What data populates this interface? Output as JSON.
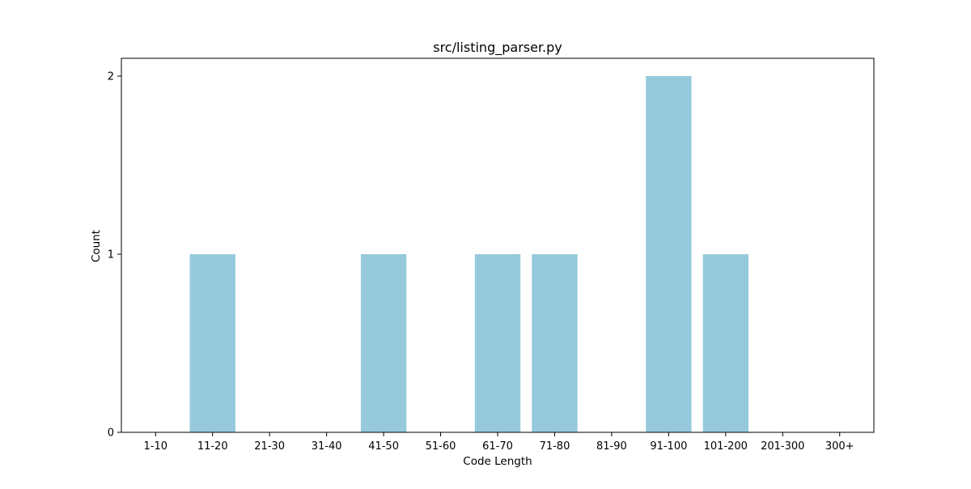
{
  "chart_data": {
    "type": "bar",
    "title": "src/listing_parser.py",
    "xlabel": "Code Length",
    "ylabel": "Count",
    "categories": [
      "1-10",
      "11-20",
      "21-30",
      "31-40",
      "41-50",
      "51-60",
      "61-70",
      "71-80",
      "81-90",
      "91-100",
      "101-200",
      "201-300",
      "300+"
    ],
    "values": [
      0,
      1,
      0,
      0,
      1,
      0,
      1,
      1,
      0,
      2,
      1,
      0,
      0
    ],
    "yticks": [
      0,
      1,
      2
    ],
    "ylim": [
      0,
      2.1
    ],
    "grid": false,
    "bar_color": "#96c9dc"
  }
}
